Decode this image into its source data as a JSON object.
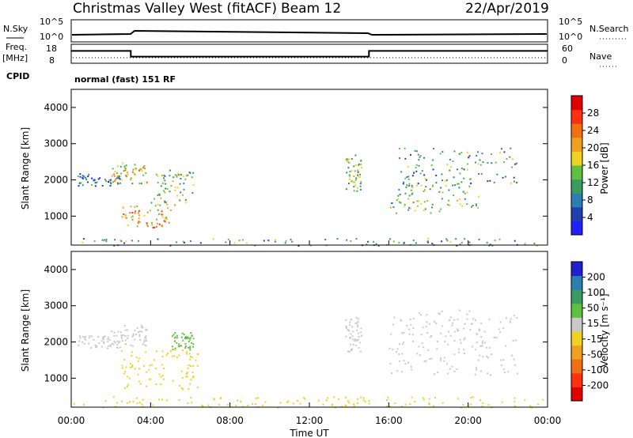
{
  "header": {
    "station": "Christmas Valley West (fitACF)",
    "beam": "Beam 12",
    "date": "22/Apr/2019"
  },
  "strips": {
    "nsky_label": "N.Sky",
    "nsearch_label": "N.Search",
    "noise_ticks_left": [
      "10^5",
      "10^0"
    ],
    "noise_ticks_right": [
      "10^5",
      "10^0"
    ],
    "freq_label": "Freq.",
    "freq_unit": "[MHz]",
    "freq_ticks": [
      "18",
      "8"
    ],
    "nave_label": "Nave",
    "nave_ticks": [
      "60",
      "0"
    ],
    "cpid_label": "CPID",
    "cpid_text": "normal (fast) 151 RF"
  },
  "colors": {
    "power_scale": [
      "#2020ff",
      "#2040b0",
      "#2a7fb0",
      "#3a9a60",
      "#60c040",
      "#f0d020",
      "#f0a020",
      "#f07010",
      "#ff3010",
      "#e00000"
    ],
    "velocity_scale": [
      "#e00000",
      "#ff3010",
      "#f07010",
      "#f0a020",
      "#f0d020",
      "#c8c8c8",
      "#60c040",
      "#3a9a60",
      "#2a7fb0",
      "#2020d0"
    ]
  },
  "chart_data": [
    {
      "type": "heatmap",
      "name": "power",
      "ylabel": "Slant Range [km]",
      "yticks": [
        "1000",
        "2000",
        "3000",
        "4000"
      ],
      "ylim": [
        200,
        4500
      ],
      "colorbar_label": "Power [dB]",
      "colorbar_ticks": [
        "4",
        "8",
        "12",
        "16",
        "20",
        "24",
        "28"
      ],
      "colorbar_range": [
        0,
        32
      ],
      "regions": [
        {
          "t0": 2.0,
          "t1": 3.8,
          "r0": 1900,
          "r1": 2500,
          "value": 18
        },
        {
          "t0": 0.3,
          "t1": 2.5,
          "r0": 1850,
          "r1": 2200,
          "value": 8
        },
        {
          "t0": 2.5,
          "t1": 5.0,
          "r0": 700,
          "r1": 1300,
          "value": 20
        },
        {
          "t0": 4.0,
          "t1": 6.2,
          "r0": 1300,
          "r1": 2300,
          "value": 14
        },
        {
          "t0": 13.8,
          "t1": 14.6,
          "r0": 1700,
          "r1": 2700,
          "value": 14
        },
        {
          "t0": 16.0,
          "t1": 20.5,
          "r0": 1100,
          "r1": 1900,
          "value": 14
        },
        {
          "t0": 16.5,
          "t1": 22.5,
          "r0": 1900,
          "r1": 2900,
          "value": 10
        },
        {
          "t0": 0.0,
          "t1": 24.0,
          "r0": 200,
          "r1": 400,
          "value": 10
        }
      ]
    },
    {
      "type": "heatmap",
      "name": "velocity",
      "ylabel": "Slant Range [km]",
      "yticks": [
        "1000",
        "2000",
        "3000",
        "4000"
      ],
      "ylim": [
        200,
        4500
      ],
      "xlabel": "Time UT",
      "xticks": [
        "00:00",
        "04:00",
        "08:00",
        "12:00",
        "16:00",
        "20:00",
        "00:00"
      ],
      "xlim": [
        0,
        24
      ],
      "colorbar_label": "Velocity [m s⁻¹]",
      "colorbar_ticks": [
        "-200",
        "-100",
        "-50",
        "-15",
        "15",
        "50",
        "100",
        "200"
      ],
      "regions": [
        {
          "t0": 2.0,
          "t1": 3.8,
          "r0": 1900,
          "r1": 2500,
          "value": 0
        },
        {
          "t0": 0.3,
          "t1": 2.5,
          "r0": 1850,
          "r1": 2200,
          "value": 0
        },
        {
          "t0": 2.5,
          "t1": 6.5,
          "r0": 700,
          "r1": 1800,
          "value": -40
        },
        {
          "t0": 5.0,
          "t1": 6.2,
          "r0": 1800,
          "r1": 2300,
          "value": 30
        },
        {
          "t0": 13.8,
          "t1": 14.6,
          "r0": 1700,
          "r1": 2700,
          "value": 0
        },
        {
          "t0": 16.0,
          "t1": 22.5,
          "r0": 1100,
          "r1": 2900,
          "value": 0
        },
        {
          "t0": 0.0,
          "t1": 24.0,
          "r0": 200,
          "r1": 500,
          "value": -40
        }
      ]
    },
    {
      "type": "line",
      "name": "frequency",
      "x": [
        0,
        3,
        3,
        15,
        15,
        24
      ],
      "values": [
        14.5,
        14.5,
        11.5,
        11.5,
        14.5,
        14.5
      ],
      "ylim": [
        8,
        18
      ]
    }
  ]
}
